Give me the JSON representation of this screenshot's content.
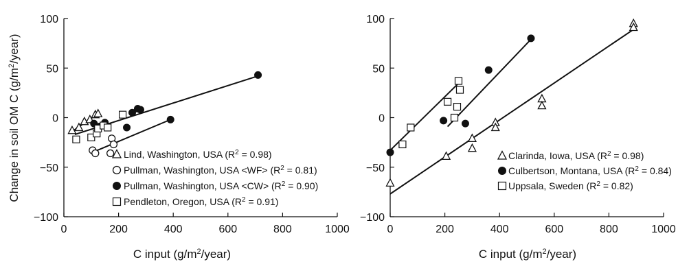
{
  "chart_data": [
    {
      "type": "scatter",
      "ylabel_main": "Change in soil OM C (g/m",
      "ylabel_sup": "2",
      "ylabel_tail": "/year)",
      "xlabel_main": "C input (g/m",
      "xlabel_sup": "2",
      "xlabel_tail": "/year)",
      "xlim": [
        0,
        1000
      ],
      "ylim": [
        -100,
        100
      ],
      "xticks": [
        "0",
        "200",
        "400",
        "600",
        "800",
        "1000"
      ],
      "yticks": [
        "100",
        "50",
        "0",
        "−50",
        "−100"
      ],
      "ytick_values": [
        100,
        50,
        0,
        -50,
        -100
      ],
      "xtick_values": [
        0,
        200,
        400,
        600,
        800,
        1000
      ],
      "series": [
        {
          "name": "Lind, Washington, USA (R",
          "r2": " = 0.98)",
          "marker": "triangle",
          "x": [
            30,
            55,
            75,
            95,
            115,
            125
          ],
          "y": [
            -13,
            -10,
            -4,
            -2,
            3,
            4
          ],
          "fit": [
            [
              30,
              -14
            ],
            [
              125,
              4
            ]
          ]
        },
        {
          "name": "Pullman, Washington, USA <WF> (R",
          "r2": " = 0.81)",
          "marker": "circle-open",
          "x": [
            105,
            115,
            170,
            175,
            182
          ],
          "y": [
            -33,
            -36,
            -36,
            -21,
            -27
          ],
          "fit": [
            [
              105,
              -35
            ],
            [
              390,
              -2
            ]
          ]
        },
        {
          "name": "Pullman, Washington, USA <CW> (R",
          "r2": " = 0.90)",
          "marker": "circle-filled",
          "x": [
            110,
            130,
            150,
            230,
            250,
            270,
            280,
            390,
            710
          ],
          "y": [
            -6,
            -9,
            -5,
            -10,
            5,
            9,
            8,
            -2,
            43
          ],
          "fit": [
            [
              40,
              -17
            ],
            [
              710,
              42
            ]
          ]
        },
        {
          "name": "Pendleton, Oregon, USA (R",
          "r2": " = 0.91)",
          "marker": "square",
          "x": [
            45,
            100,
            120,
            125,
            145,
            160,
            215
          ],
          "y": [
            -22,
            -20,
            -16,
            -11,
            -8,
            -10,
            3
          ],
          "fit": []
        }
      ]
    },
    {
      "type": "scatter",
      "xlabel_main": "C input (g/m",
      "xlabel_sup": "2",
      "xlabel_tail": "/year)",
      "xlim": [
        0,
        1000
      ],
      "ylim": [
        -100,
        100
      ],
      "xticks": [
        "0",
        "200",
        "400",
        "600",
        "800",
        "1000"
      ],
      "yticks": [
        "100",
        "50",
        "0",
        "−50",
        "−100"
      ],
      "ytick_values": [
        100,
        50,
        0,
        -50,
        -100
      ],
      "xtick_values": [
        0,
        200,
        400,
        600,
        800,
        1000
      ],
      "series": [
        {
          "name": "Clarinda, Iowa, USA (R",
          "r2": " = 0.98)",
          "marker": "triangle",
          "x": [
            0,
            205,
            300,
            300,
            385,
            385,
            555,
            555,
            890,
            890
          ],
          "y": [
            -66,
            -39,
            -21,
            -31,
            -5,
            -10,
            19,
            12,
            95,
            91
          ],
          "fit": [
            [
              0,
              -77
            ],
            [
              890,
              89
            ]
          ]
        },
        {
          "name": "Culbertson, Montana, USA (R",
          "r2": " = 0.84)",
          "marker": "circle-filled",
          "x": [
            0,
            195,
            275,
            360,
            515
          ],
          "y": [
            -35,
            -3,
            -6,
            48,
            80
          ],
          "fit": [
            [
              210,
              -9
            ],
            [
              515,
              79
            ]
          ]
        },
        {
          "name": "Uppsala, Sweden (R",
          "r2": " = 0.82)",
          "marker": "square",
          "x": [
            45,
            75,
            210,
            235,
            245,
            250,
            255
          ],
          "y": [
            -27,
            -10,
            16,
            0,
            11,
            37,
            28
          ],
          "fit": [
            [
              0,
              -33
            ],
            [
              255,
              36
            ]
          ]
        }
      ]
    }
  ]
}
